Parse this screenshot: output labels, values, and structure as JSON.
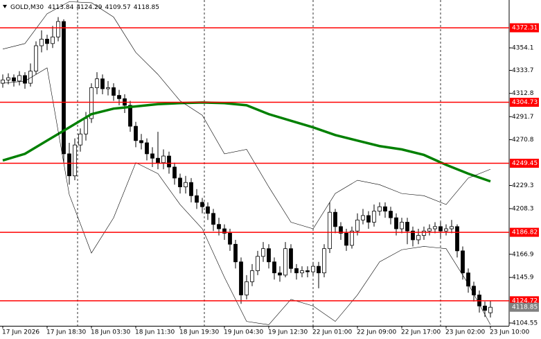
{
  "chart_data": {
    "type": "candlestick",
    "symbol": "GOLD,M30",
    "categories": [
      "17 Jun 2026",
      null,
      null,
      null,
      null,
      null,
      null,
      null,
      "17 Jun 18:30",
      null,
      null,
      null,
      null,
      null,
      null,
      null,
      "18 Jun 03:30",
      null,
      null,
      null,
      null,
      null,
      null,
      null,
      "18 Jun 11:30",
      null,
      null,
      null,
      null,
      null,
      null,
      null,
      "18 Jun 19:30",
      null,
      null,
      null,
      null,
      null,
      null,
      null,
      "19 Jun 04:30",
      null,
      null,
      null,
      null,
      null,
      null,
      null,
      "19 Jun 12:30",
      null,
      null,
      null,
      null,
      null,
      null,
      null,
      "22 Jun 01:00",
      null,
      null,
      null,
      null,
      null,
      null,
      null,
      "22 Jun 09:00",
      null,
      null,
      null,
      null,
      null,
      null,
      null,
      "22 Jun 17:00",
      null,
      null,
      null,
      null,
      null,
      null,
      null,
      "23 Jun 02:00",
      null,
      null,
      null,
      null,
      null,
      null,
      null,
      "23 Jun 10:00"
    ],
    "series": [
      {
        "color": "#000000",
        "open": [
          4322,
          4325,
          4327,
          4324,
          4329,
          4322,
          4333,
          4356,
          4362,
          4358,
          4364,
          4378,
          4258,
          4238,
          4266,
          4276,
          4290,
          4318,
          4326,
          4317,
          4318,
          4311,
          4308,
          4302,
          4283,
          4270,
          4268,
          4258,
          4254,
          4250,
          4256,
          4246,
          4236,
          4228,
          4232,
          4220,
          4214,
          4210,
          4204,
          4194,
          4190,
          4186,
          4176,
          4160,
          4130,
          4142,
          4152,
          4165,
          4172,
          4160,
          4150,
          4148,
          4172,
          4154,
          4150,
          4152,
          4151,
          4156,
          4150,
          4172,
          4205,
          4192,
          4186,
          4175,
          4188,
          4198,
          4202,
          4196,
          4206,
          4210,
          4206,
          4200,
          4190,
          4196,
          4188,
          4180,
          4184,
          4188,
          4190,
          4192,
          4188,
          4190,
          4192,
          4170,
          4150,
          4138,
          4130,
          4120,
          4113.84
        ],
        "high": [
          4330,
          4331,
          4330,
          4333,
          4332,
          4340,
          4360,
          4370,
          4366,
          4374,
          4382,
          4380,
          4268,
          4272,
          4281,
          4296,
          4322,
          4332,
          4330,
          4324,
          4322,
          4316,
          4312,
          4306,
          4287,
          4276,
          4272,
          4264,
          4278,
          4262,
          4260,
          4250,
          4240,
          4238,
          4236,
          4226,
          4218,
          4214,
          4208,
          4200,
          4194,
          4190,
          4180,
          4164,
          4148,
          4158,
          4170,
          4178,
          4176,
          4164,
          4156,
          4178,
          4176,
          4158,
          4156,
          4156,
          4160,
          4160,
          4176,
          4214,
          4208,
          4196,
          4190,
          4192,
          4204,
          4208,
          4206,
          4212,
          4214,
          4214,
          4210,
          4204,
          4200,
          4200,
          4192,
          4190,
          4192,
          4194,
          4196,
          4196,
          4194,
          4198,
          4194,
          4174,
          4154,
          4142,
          4134,
          4124,
          4124.29
        ],
        "low": [
          4318,
          4321,
          4319,
          4320,
          4317,
          4319,
          4330,
          4350,
          4352,
          4354,
          4360,
          4250,
          4230,
          4234,
          4260,
          4270,
          4286,
          4312,
          4312,
          4311,
          4306,
          4302,
          4295,
          4278,
          4264,
          4262,
          4252,
          4246,
          4244,
          4244,
          4240,
          4230,
          4222,
          4222,
          4214,
          4208,
          4204,
          4198,
          4188,
          4184,
          4180,
          4170,
          4154,
          4122,
          4126,
          4138,
          4148,
          4160,
          4154,
          4144,
          4142,
          4146,
          4150,
          4144,
          4146,
          4146,
          4148,
          4136,
          4146,
          4168,
          4186,
          4180,
          4170,
          4172,
          4184,
          4194,
          4190,
          4192,
          4202,
          4200,
          4194,
          4184,
          4186,
          4176,
          4174,
          4176,
          4180,
          4184,
          4186,
          4182,
          4184,
          4186,
          4164,
          4144,
          4132,
          4124,
          4114,
          4110,
          4109.57
        ],
        "close": [
          4325,
          4327,
          4324,
          4329,
          4322,
          4333,
          4356,
          4362,
          4358,
          4364,
          4378,
          4258,
          4238,
          4266,
          4276,
          4290,
          4318,
          4326,
          4317,
          4318,
          4311,
          4308,
          4302,
          4283,
          4270,
          4268,
          4258,
          4254,
          4250,
          4256,
          4246,
          4236,
          4228,
          4232,
          4220,
          4214,
          4210,
          4204,
          4194,
          4190,
          4186,
          4176,
          4160,
          4130,
          4142,
          4152,
          4165,
          4172,
          4160,
          4150,
          4148,
          4172,
          4154,
          4150,
          4152,
          4151,
          4156,
          4150,
          4172,
          4205,
          4192,
          4186,
          4175,
          4188,
          4198,
          4202,
          4196,
          4206,
          4210,
          4206,
          4200,
          4190,
          4196,
          4188,
          4180,
          4184,
          4188,
          4190,
          4192,
          4188,
          4190,
          4192,
          4170,
          4150,
          4138,
          4130,
          4120,
          4116,
          4118.85
        ]
      }
    ],
    "indicators": [
      {
        "color": "#008000",
        "line_width": 3.5,
        "x": [
          0,
          4,
          8,
          12,
          16,
          20,
          24,
          28,
          32,
          36,
          40,
          44,
          48,
          52,
          56,
          60,
          64,
          68,
          72,
          76,
          80,
          84,
          88
        ],
        "values": [
          4252,
          4258,
          4270,
          4282,
          4294,
          4299,
          4301,
          4303,
          4304,
          4304.5,
          4304,
          4302,
          4294,
          4288,
          4282,
          4275,
          4270,
          4265,
          4262,
          4257,
          4248,
          4240,
          4233
        ]
      },
      {
        "color": "#000000",
        "line_width": 0.6,
        "x": [
          0,
          4,
          8,
          12,
          16,
          20,
          24,
          28,
          32,
          36,
          40,
          44,
          48,
          52,
          56,
          60,
          64,
          68,
          72,
          76,
          80,
          84,
          88
        ],
        "values": [
          4353,
          4358,
          4385,
          4396,
          4395,
          4382,
          4350,
          4330,
          4306,
          4293,
          4258,
          4262,
          4228,
          4196,
          4190,
          4222,
          4234,
          4230,
          4222,
          4220,
          4212,
          4236,
          4244
        ]
      },
      {
        "color": "#000000",
        "line_width": 0.6,
        "x": [
          0,
          4,
          8,
          12,
          16,
          20,
          24,
          28,
          32,
          36,
          40,
          44,
          48,
          52,
          56,
          60,
          64,
          68,
          72,
          76,
          80,
          84,
          88
        ],
        "values": [
          4322,
          4324,
          4336,
          4221,
          4168,
          4200,
          4250,
          4240,
          4212,
          4190,
          4146,
          4106,
          4103,
          4126,
          4120,
          4106,
          4130,
          4160,
          4171,
          4174,
          4172,
          4140,
          4103
        ]
      }
    ],
    "levels": {
      "color": "#ff0000",
      "values": [
        4372.31,
        4304.73,
        4249.45,
        4186.82,
        4124.72
      ]
    },
    "last_price_color": "#808080",
    "ylim": [
      4102.0,
      4397.5
    ],
    "yticks": [
      4354.1,
      4333.7,
      4312.8,
      4291.7,
      4270.8,
      4229.3,
      4208.3,
      4166.9,
      4145.9,
      4104.55
    ]
  }
}
